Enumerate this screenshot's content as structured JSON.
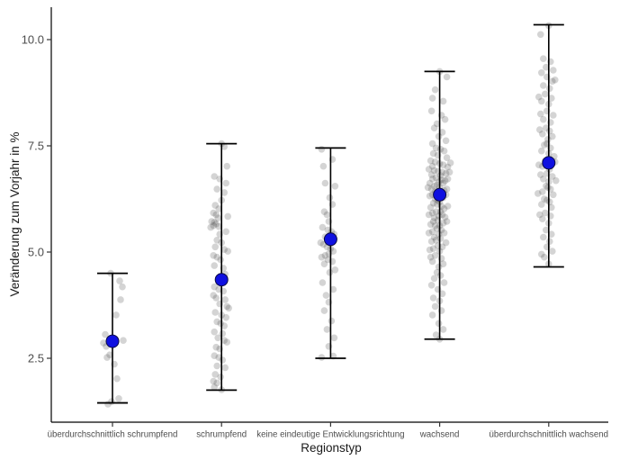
{
  "chart_data": {
    "type": "scatter",
    "variant": "jittered strip plot with mean point and error bars (range)",
    "title": "",
    "xlabel": "Regionstyp",
    "ylabel": "Veränderung zum Vorjahr in %",
    "grid": false,
    "legend_position": "none",
    "y_ticks": [
      "2.5",
      "5.0",
      "7.5",
      "10.0"
    ],
    "y_tick_values": [
      2.5,
      5.0,
      7.5,
      10.0
    ],
    "ylim": [
      1.0,
      10.75
    ],
    "categories": [
      "überdurchschnittlich schrumpfend",
      "schrumpfend",
      "keine eindeutige Entwicklungsrichtung",
      "wachsend",
      "überdurchschnittlich wachsend"
    ],
    "series": [
      {
        "name": "überdurchschnittlich schrumpfend",
        "mean": 2.9,
        "lower": 1.45,
        "upper": 4.5,
        "points": [
          [
            -2,
            4.5
          ],
          [
            8,
            4.32
          ],
          [
            11,
            4.18
          ],
          [
            9,
            3.88
          ],
          [
            4,
            3.52
          ],
          [
            -8,
            3.06
          ],
          [
            12,
            2.92
          ],
          [
            -10,
            2.86
          ],
          [
            -7,
            2.78
          ],
          [
            -3,
            2.58
          ],
          [
            -6,
            2.52
          ],
          [
            2,
            2.36
          ],
          [
            5,
            2.02
          ],
          [
            7,
            1.55
          ],
          [
            -1,
            1.48
          ],
          [
            -5,
            1.42
          ]
        ]
      },
      {
        "name": "schrumpfend",
        "mean": 4.35,
        "lower": 1.75,
        "upper": 7.55,
        "points": [
          [
            0,
            7.55
          ],
          [
            3,
            7.48
          ],
          [
            6,
            7.02
          ],
          [
            -8,
            6.78
          ],
          [
            -2,
            6.72
          ],
          [
            5,
            6.62
          ],
          [
            -5,
            6.48
          ],
          [
            3,
            6.4
          ],
          [
            0,
            6.22
          ],
          [
            -7,
            6.1
          ],
          [
            -3,
            6.02
          ],
          [
            -9,
            5.92
          ],
          [
            -6,
            5.88
          ],
          [
            7,
            5.84
          ],
          [
            -4,
            5.8
          ],
          [
            -11,
            5.72
          ],
          [
            -8,
            5.7
          ],
          [
            -6,
            5.66
          ],
          [
            -9,
            5.62
          ],
          [
            -3,
            5.6
          ],
          [
            -12,
            5.58
          ],
          [
            5,
            5.48
          ],
          [
            -2,
            5.42
          ],
          [
            -5,
            5.28
          ],
          [
            0,
            5.22
          ],
          [
            -7,
            5.12
          ],
          [
            3,
            5.06
          ],
          [
            7,
            5.02
          ],
          [
            -9,
            4.92
          ],
          [
            -5,
            4.88
          ],
          [
            -1,
            4.82
          ],
          [
            -8,
            4.68
          ],
          [
            2,
            4.62
          ],
          [
            4,
            4.48
          ],
          [
            0,
            4.42
          ],
          [
            -8,
            4.18
          ],
          [
            -3,
            4.12
          ],
          [
            2,
            4.08
          ],
          [
            -9,
            3.98
          ],
          [
            -6,
            3.92
          ],
          [
            4,
            3.88
          ],
          [
            -2,
            3.78
          ],
          [
            6,
            3.72
          ],
          [
            8,
            3.68
          ],
          [
            -7,
            3.58
          ],
          [
            0,
            3.52
          ],
          [
            5,
            3.46
          ],
          [
            -5,
            3.36
          ],
          [
            -1,
            3.32
          ],
          [
            3,
            3.26
          ],
          [
            -8,
            3.12
          ],
          [
            1,
            3.08
          ],
          [
            -4,
            2.98
          ],
          [
            3,
            2.92
          ],
          [
            6,
            2.88
          ],
          [
            -6,
            2.76
          ],
          [
            -2,
            2.72
          ],
          [
            -8,
            2.56
          ],
          [
            -3,
            2.52
          ],
          [
            1,
            2.46
          ],
          [
            -5,
            2.32
          ],
          [
            4,
            2.28
          ],
          [
            -7,
            2.12
          ],
          [
            -1,
            2.06
          ],
          [
            -9,
            1.96
          ],
          [
            -5,
            1.92
          ],
          [
            -8,
            1.82
          ],
          [
            0,
            1.76
          ]
        ]
      },
      {
        "name": "keine eindeutige Entwicklungsrichtung",
        "mean": 5.3,
        "lower": 2.5,
        "upper": 7.45,
        "points": [
          [
            -10,
            7.42
          ],
          [
            2,
            7.18
          ],
          [
            -8,
            7.02
          ],
          [
            -6,
            6.62
          ],
          [
            5,
            6.55
          ],
          [
            -1,
            6.28
          ],
          [
            2,
            6.12
          ],
          [
            -7,
            5.95
          ],
          [
            -4,
            5.88
          ],
          [
            -2,
            5.72
          ],
          [
            -9,
            5.58
          ],
          [
            -3,
            5.52
          ],
          [
            1,
            5.48
          ],
          [
            4,
            5.42
          ],
          [
            -6,
            5.36
          ],
          [
            -1,
            5.32
          ],
          [
            -11,
            5.22
          ],
          [
            -8,
            5.18
          ],
          [
            -4,
            5.12
          ],
          [
            0,
            5.08
          ],
          [
            3,
            5.02
          ],
          [
            -2,
            4.96
          ],
          [
            -6,
            4.92
          ],
          [
            -10,
            4.88
          ],
          [
            -3,
            4.82
          ],
          [
            2,
            4.78
          ],
          [
            -7,
            4.72
          ],
          [
            5,
            4.58
          ],
          [
            -1,
            4.52
          ],
          [
            -9,
            4.28
          ],
          [
            3,
            4.12
          ],
          [
            -5,
            3.98
          ],
          [
            -2,
            3.82
          ],
          [
            -7,
            3.62
          ],
          [
            1,
            3.38
          ],
          [
            -4,
            3.18
          ],
          [
            4,
            2.98
          ],
          [
            -2,
            2.78
          ],
          [
            3,
            2.55
          ],
          [
            -10,
            2.52
          ]
        ]
      },
      {
        "name": "wachsend",
        "mean": 6.35,
        "lower": 2.95,
        "upper": 9.25,
        "points": [
          [
            0,
            9.25
          ],
          [
            8,
            9.12
          ],
          [
            -5,
            8.82
          ],
          [
            -8,
            8.62
          ],
          [
            4,
            8.55
          ],
          [
            -9,
            8.32
          ],
          [
            2,
            8.22
          ],
          [
            6,
            8.12
          ],
          [
            -3,
            8.02
          ],
          [
            -6,
            7.92
          ],
          [
            3,
            7.82
          ],
          [
            -1,
            7.72
          ],
          [
            7,
            7.62
          ],
          [
            -8,
            7.55
          ],
          [
            -4,
            7.45
          ],
          [
            1,
            7.42
          ],
          [
            5,
            7.38
          ],
          [
            -7,
            7.32
          ],
          [
            -2,
            7.28
          ],
          [
            8,
            7.22
          ],
          [
            -10,
            7.15
          ],
          [
            12,
            7.1
          ],
          [
            -5,
            7.12
          ],
          [
            0,
            7.08
          ],
          [
            4,
            7.05
          ],
          [
            -8,
            7.02
          ],
          [
            9,
            7.0
          ],
          [
            -12,
            6.95
          ],
          [
            -6,
            6.92
          ],
          [
            -2,
            6.9
          ],
          [
            3,
            6.88
          ],
          [
            11,
            6.88
          ],
          [
            7,
            6.85
          ],
          [
            -9,
            6.82
          ],
          [
            1,
            6.8
          ],
          [
            -4,
            6.75
          ],
          [
            -8,
            6.72
          ],
          [
            9,
            6.72
          ],
          [
            2,
            6.7
          ],
          [
            6,
            6.68
          ],
          [
            -1,
            6.65
          ],
          [
            -11,
            6.62
          ],
          [
            4,
            6.62
          ],
          [
            -3,
            6.58
          ],
          [
            -6,
            6.55
          ],
          [
            -13,
            6.52
          ],
          [
            0,
            6.52
          ],
          [
            -9,
            6.48
          ],
          [
            8,
            6.48
          ],
          [
            5,
            6.45
          ],
          [
            -5,
            6.42
          ],
          [
            -2,
            6.38
          ],
          [
            -8,
            6.35
          ],
          [
            7,
            6.35
          ],
          [
            1,
            6.32
          ],
          [
            -11,
            6.32
          ],
          [
            4,
            6.28
          ],
          [
            -5,
            6.25
          ],
          [
            -2,
            6.22
          ],
          [
            0,
            6.18
          ],
          [
            -7,
            6.15
          ],
          [
            -3,
            6.12
          ],
          [
            9,
            6.08
          ],
          [
            2,
            6.08
          ],
          [
            -10,
            6.05
          ],
          [
            5,
            6.02
          ],
          [
            -4,
            5.95
          ],
          [
            1,
            5.95
          ],
          [
            -8,
            5.92
          ],
          [
            -12,
            5.88
          ],
          [
            3,
            5.88
          ],
          [
            -1,
            5.85
          ],
          [
            6,
            5.82
          ],
          [
            -6,
            5.8
          ],
          [
            -2,
            5.75
          ],
          [
            -7,
            5.72
          ],
          [
            8,
            5.72
          ],
          [
            4,
            5.68
          ],
          [
            -10,
            5.65
          ],
          [
            0,
            5.62
          ],
          [
            -5,
            5.62
          ],
          [
            -3,
            5.55
          ],
          [
            2,
            5.52
          ],
          [
            -8,
            5.48
          ],
          [
            5,
            5.45
          ],
          [
            -12,
            5.45
          ],
          [
            -1,
            5.42
          ],
          [
            -6,
            5.35
          ],
          [
            1,
            5.32
          ],
          [
            -4,
            5.28
          ],
          [
            -9,
            5.25
          ],
          [
            7,
            5.22
          ],
          [
            -2,
            5.15
          ],
          [
            3,
            5.12
          ],
          [
            -7,
            5.08
          ],
          [
            -11,
            5.05
          ],
          [
            0,
            5.02
          ],
          [
            -5,
            4.92
          ],
          [
            -10,
            4.88
          ],
          [
            2,
            4.85
          ],
          [
            -8,
            4.78
          ],
          [
            4,
            4.72
          ],
          [
            -1,
            4.65
          ],
          [
            -3,
            4.52
          ],
          [
            1,
            4.45
          ],
          [
            -6,
            4.38
          ],
          [
            5,
            4.28
          ],
          [
            -9,
            4.22
          ],
          [
            -2,
            4.12
          ],
          [
            3,
            4.02
          ],
          [
            -7,
            3.92
          ],
          [
            0,
            3.85
          ],
          [
            -5,
            3.72
          ],
          [
            2,
            3.62
          ],
          [
            -8,
            3.52
          ],
          [
            -1,
            3.32
          ],
          [
            4,
            3.18
          ],
          [
            -4,
            3.05
          ],
          [
            0,
            2.95
          ]
        ]
      },
      {
        "name": "überdurchschnittlich wachsend",
        "mean": 7.1,
        "lower": 4.65,
        "upper": 10.35,
        "points": [
          [
            0,
            10.33
          ],
          [
            -9,
            10.12
          ],
          [
            -6,
            9.55
          ],
          [
            2,
            9.48
          ],
          [
            -3,
            9.35
          ],
          [
            5,
            9.28
          ],
          [
            -8,
            9.22
          ],
          [
            -2,
            9.12
          ],
          [
            7,
            9.05
          ],
          [
            4,
            9.02
          ],
          [
            -6,
            8.92
          ],
          [
            1,
            8.85
          ],
          [
            -4,
            8.72
          ],
          [
            -11,
            8.65
          ],
          [
            3,
            8.62
          ],
          [
            -8,
            8.55
          ],
          [
            0,
            8.48
          ],
          [
            -2,
            8.32
          ],
          [
            -9,
            8.25
          ],
          [
            5,
            8.22
          ],
          [
            -6,
            8.12
          ],
          [
            2,
            8.05
          ],
          [
            -3,
            7.92
          ],
          [
            -10,
            7.88
          ],
          [
            1,
            7.85
          ],
          [
            -7,
            7.78
          ],
          [
            4,
            7.72
          ],
          [
            -1,
            7.65
          ],
          [
            -2,
            7.55
          ],
          [
            -5,
            7.52
          ],
          [
            2,
            7.45
          ],
          [
            -8,
            7.38
          ],
          [
            0,
            7.32
          ],
          [
            6,
            7.25
          ],
          [
            -4,
            7.15
          ],
          [
            7,
            7.12
          ],
          [
            3,
            7.08
          ],
          [
            -11,
            7.05
          ],
          [
            -7,
            7.02
          ],
          [
            1,
            6.95
          ],
          [
            -2,
            6.85
          ],
          [
            -9,
            6.82
          ],
          [
            4,
            6.78
          ],
          [
            -6,
            6.72
          ],
          [
            8,
            6.68
          ],
          [
            0,
            6.65
          ],
          [
            -3,
            6.55
          ],
          [
            -1,
            6.52
          ],
          [
            2,
            6.48
          ],
          [
            -7,
            6.42
          ],
          [
            -12,
            6.38
          ],
          [
            5,
            6.35
          ],
          [
            -5,
            6.25
          ],
          [
            -2,
            6.22
          ],
          [
            1,
            6.18
          ],
          [
            -8,
            6.12
          ],
          [
            3,
            6.05
          ],
          [
            -4,
            5.92
          ],
          [
            -10,
            5.88
          ],
          [
            2,
            5.85
          ],
          [
            -7,
            5.78
          ],
          [
            0,
            5.68
          ],
          [
            -3,
            5.52
          ],
          [
            3,
            5.42
          ],
          [
            -6,
            5.35
          ],
          [
            1,
            5.25
          ],
          [
            -2,
            5.12
          ],
          [
            4,
            5.02
          ],
          [
            -8,
            4.95
          ],
          [
            -5,
            4.88
          ],
          [
            0,
            4.72
          ]
        ]
      }
    ],
    "colors": {
      "background": "#ffffff",
      "axis_line": "#000000",
      "tick_mark": "#333333",
      "tick_label": "#4d4d4d",
      "axis_title": "#1a1a1a",
      "jitter_point": "#3c3c3c",
      "jitter_opacity": "0.22",
      "errorbar": "#000000",
      "mean_fill": "#0f10e0",
      "mean_stroke": "#0b0b46"
    }
  }
}
